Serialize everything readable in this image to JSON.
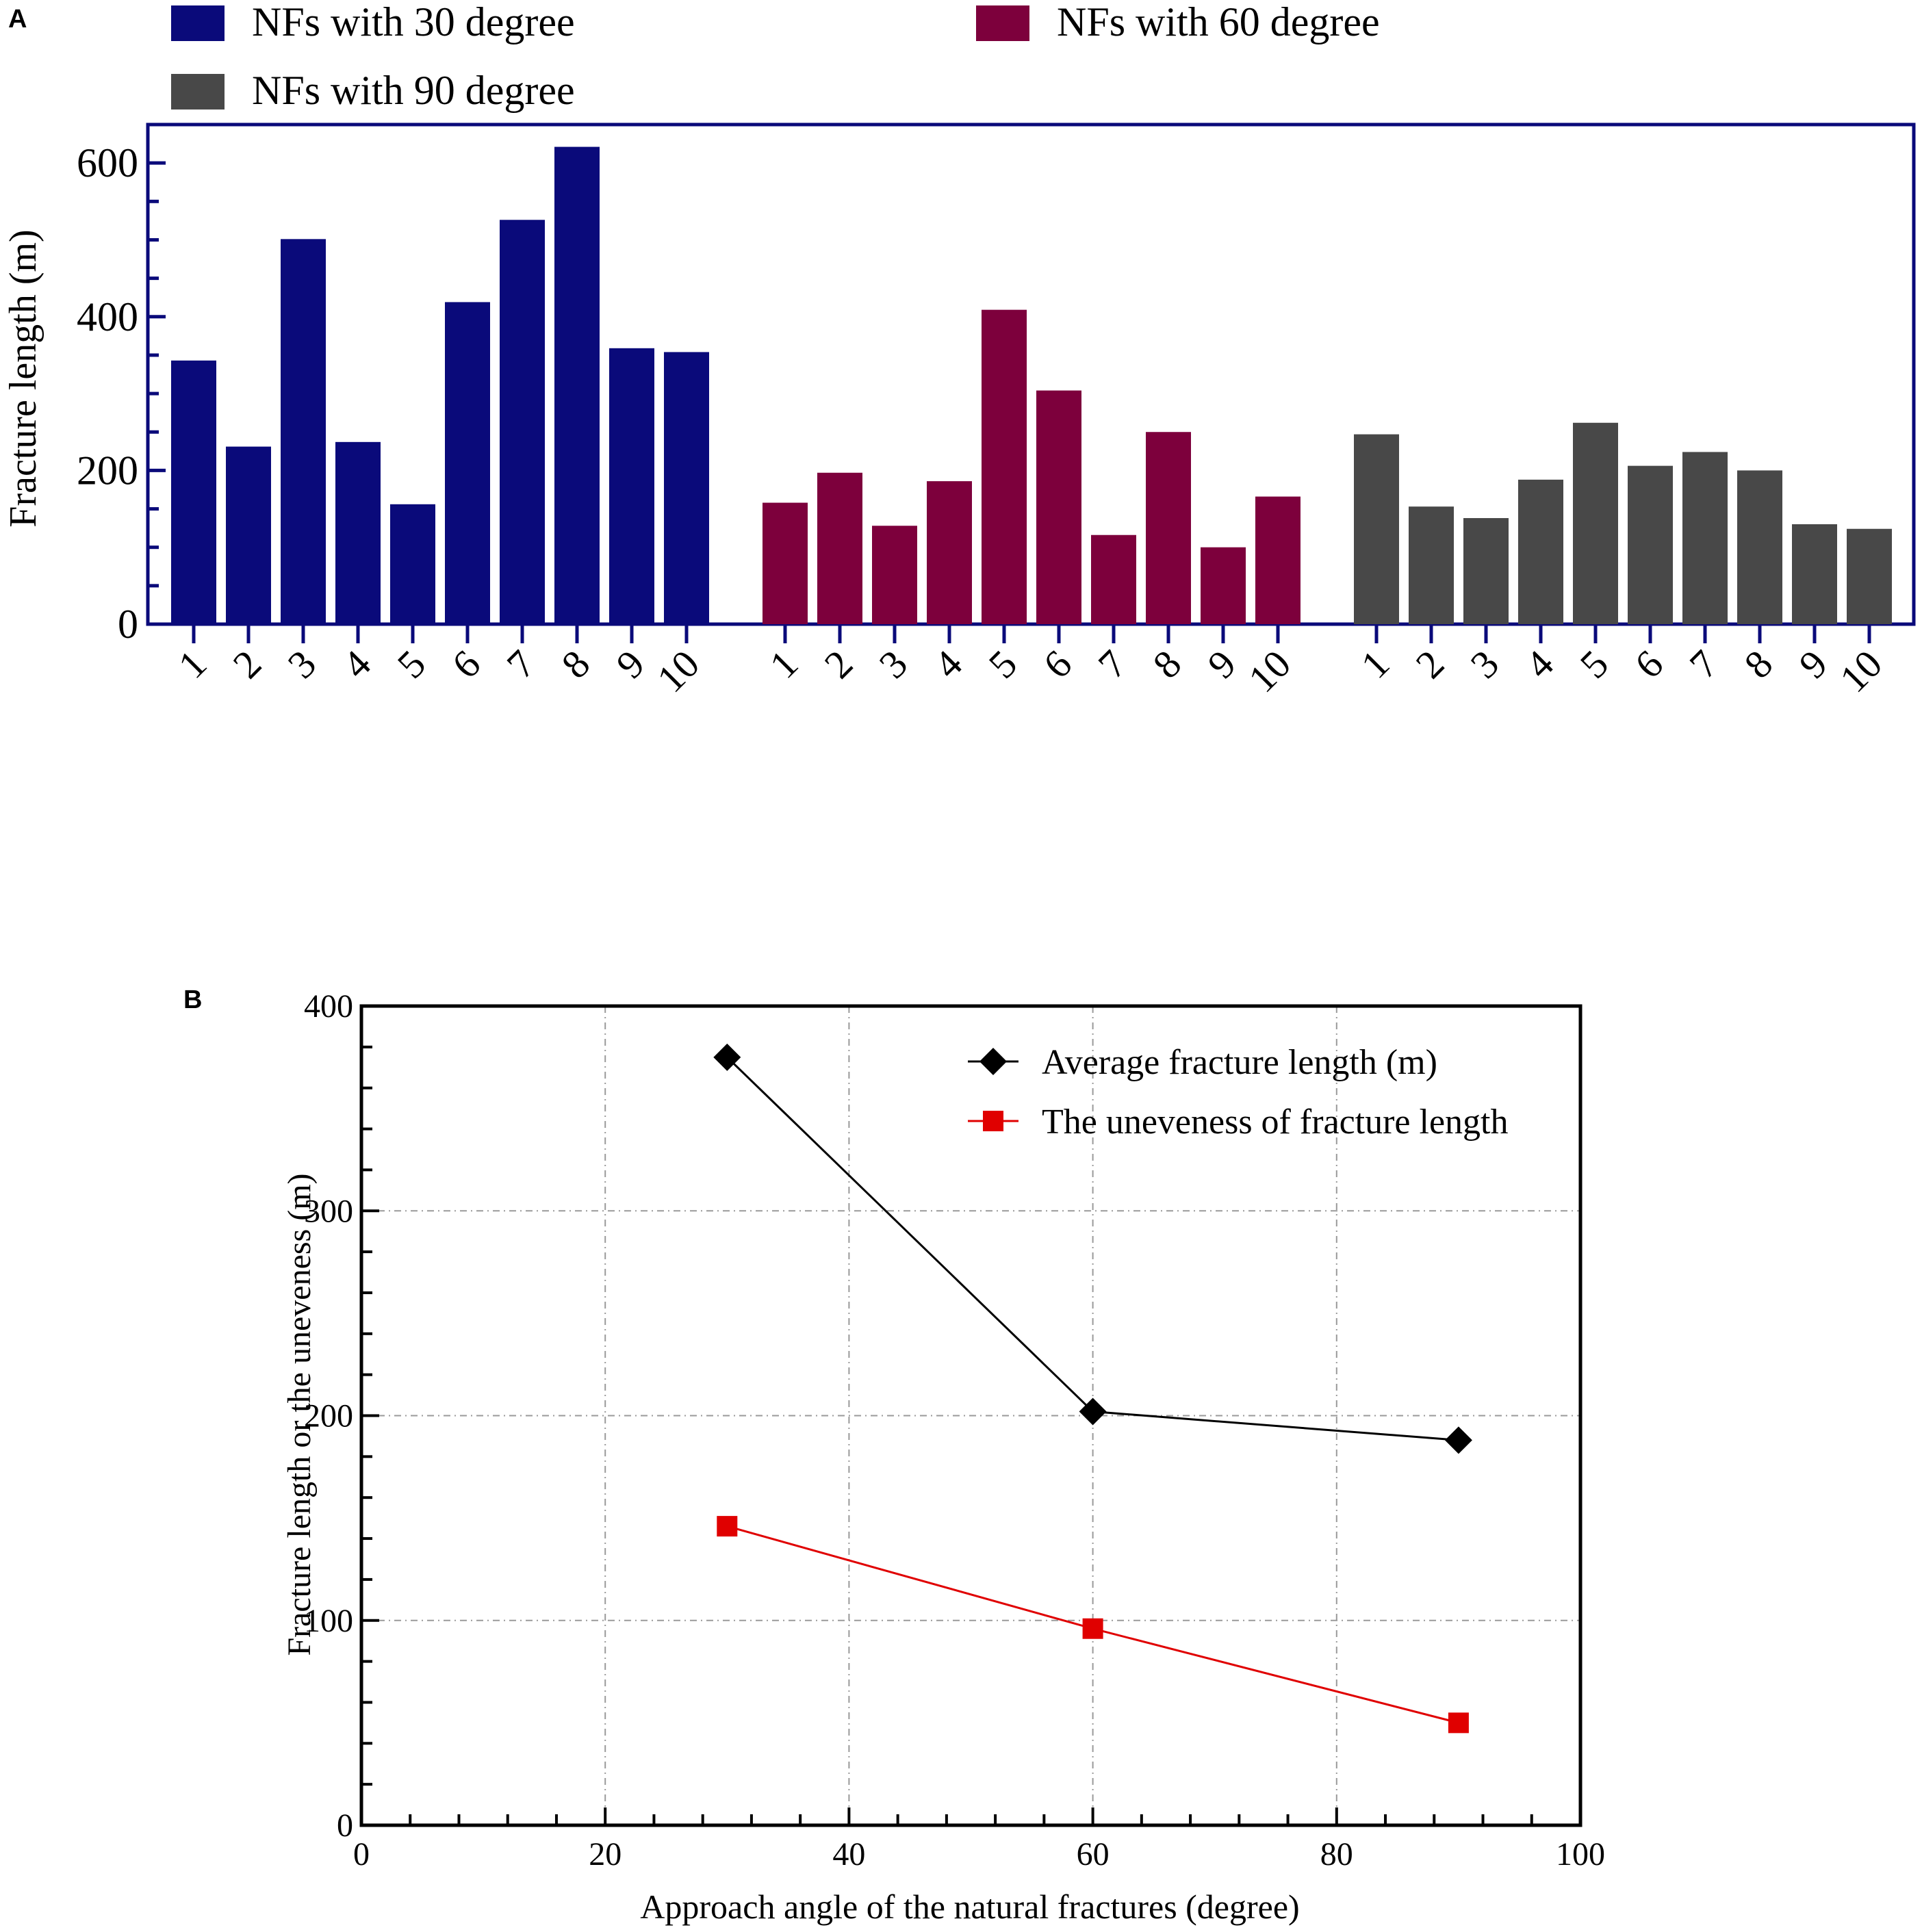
{
  "panels": {
    "a": {
      "label": "A"
    },
    "b": {
      "label": "B"
    }
  },
  "chart_data": [
    {
      "type": "bar",
      "panel": "A",
      "title": "",
      "xlabel": "",
      "ylabel": "Fracture length (m)",
      "ylim": [
        0,
        650
      ],
      "yticks": [
        0,
        200,
        400,
        600
      ],
      "grid": false,
      "legend_position": "top",
      "categories": [
        "1",
        "2",
        "3",
        "4",
        "5",
        "6",
        "7",
        "8",
        "9",
        "10"
      ],
      "series": [
        {
          "name": "NFs with 30 degree",
          "color": "#0a0a7a",
          "values": [
            343,
            231,
            501,
            237,
            156,
            419,
            526,
            621,
            359,
            354
          ]
        },
        {
          "name": "NFs with 60 degree",
          "color": "#7d003c",
          "values": [
            158,
            197,
            128,
            186,
            409,
            304,
            116,
            250,
            100,
            166
          ]
        },
        {
          "name": "NFs with 90 degree",
          "color": "#484848",
          "values": [
            247,
            153,
            138,
            188,
            262,
            206,
            224,
            200,
            130,
            124
          ]
        }
      ]
    },
    {
      "type": "line",
      "panel": "B",
      "title": "",
      "xlabel": "Approach angle of the natural fractures (degree)",
      "ylabel": "Fracture length or the uneveness (m)",
      "xlim": [
        0,
        100
      ],
      "ylim": [
        0,
        400
      ],
      "xticks": [
        0,
        20,
        40,
        60,
        80,
        100
      ],
      "yticks": [
        0,
        100,
        200,
        300,
        400
      ],
      "grid": true,
      "legend_position": "top-right",
      "x": [
        30,
        60,
        90
      ],
      "series": [
        {
          "name": "Average fracture length (m)",
          "color": "#000000",
          "marker": "diamond",
          "values": [
            375,
            202,
            188
          ]
        },
        {
          "name": "The uneveness of fracture length",
          "color": "#e00000",
          "marker": "square",
          "values": [
            146,
            96,
            50
          ]
        }
      ]
    }
  ]
}
